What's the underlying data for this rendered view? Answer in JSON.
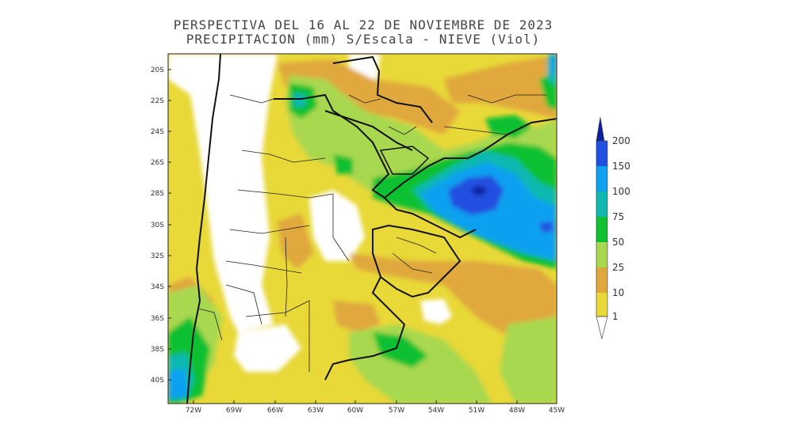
{
  "title": {
    "line1": "PERSPECTIVA DEL 16 AL 22 DE NOVIEMBRE DE 2023",
    "line2": "PRECIPITACION (mm) S/Escala - NIEVE (Viol)"
  },
  "map": {
    "lat_labels": [
      "20S",
      "22S",
      "24S",
      "26S",
      "28S",
      "30S",
      "32S",
      "34S",
      "36S",
      "38S",
      "40S"
    ],
    "lon_labels": [
      "72W",
      "69W",
      "66W",
      "63W",
      "60W",
      "57W",
      "54W",
      "51W",
      "48W",
      "45W"
    ],
    "variable": "precipitation",
    "units": "mm"
  },
  "colorbar": {
    "labels": [
      "1",
      "10",
      "25",
      "50",
      "75",
      "100",
      "150",
      "200"
    ],
    "colors": {
      "c1": "#e8d838",
      "c10": "#e0a83c",
      "c25": "#a8d850",
      "c50": "#10c030",
      "c75": "#10b8b0",
      "c100": "#10a0f0",
      "c150": "#2050e0",
      "c200": "#1020a0"
    }
  }
}
